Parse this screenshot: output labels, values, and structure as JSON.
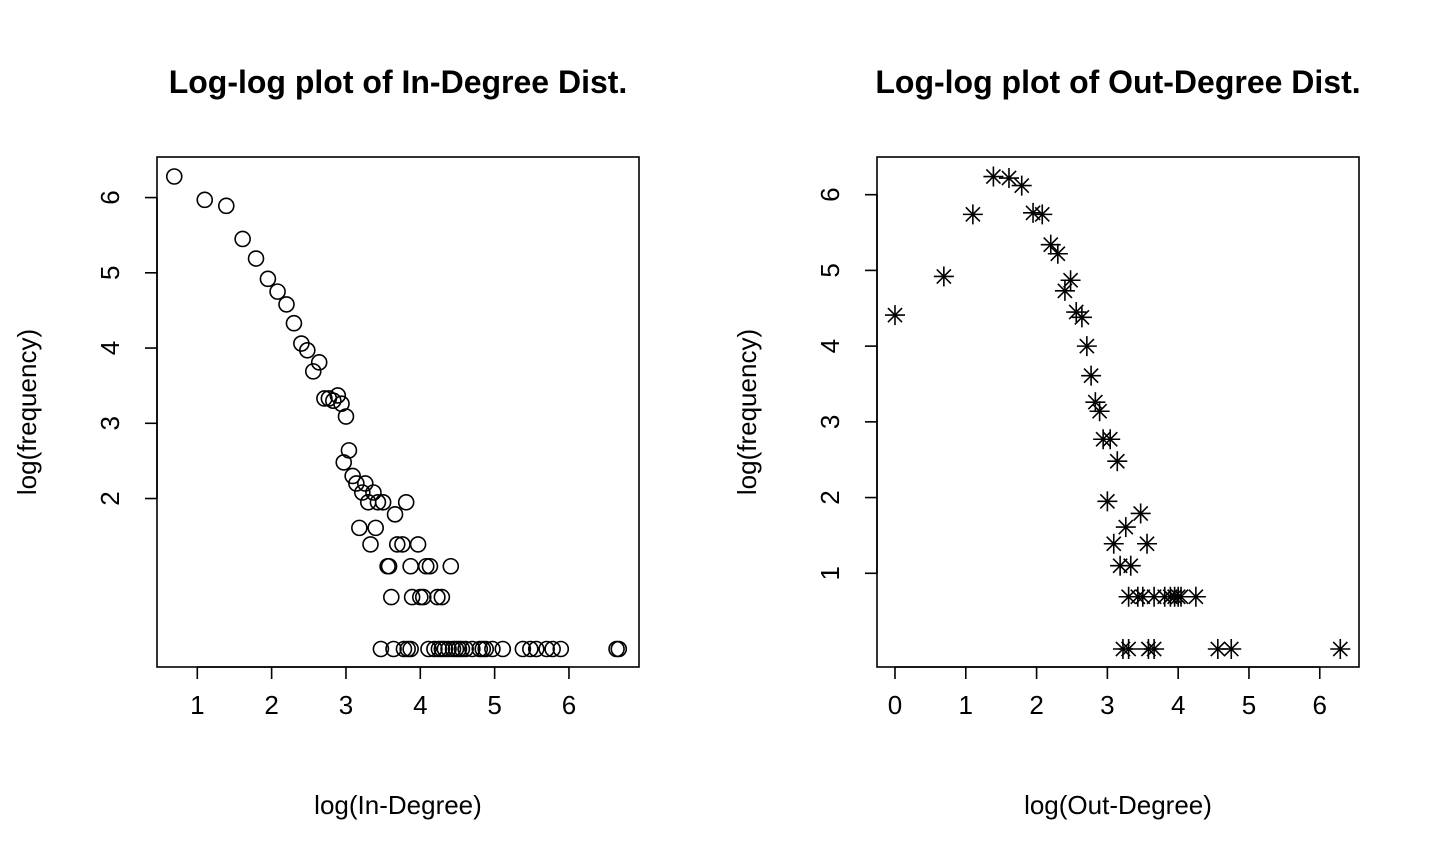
{
  "chart_data": [
    {
      "type": "scatter",
      "title": "Log-log plot of In-Degree Dist.",
      "xlabel": "log(In-Degree)",
      "ylabel": "log(frequency)",
      "xlim": [
        0.7,
        6.7
      ],
      "ylim": [
        0,
        6.3
      ],
      "xticks": [
        1,
        2,
        3,
        4,
        5,
        6
      ],
      "yticks": [
        2,
        3,
        4,
        5,
        6
      ],
      "marker": "circle",
      "points": [
        [
          0.69,
          6.28
        ],
        [
          1.1,
          5.97
        ],
        [
          1.39,
          5.89
        ],
        [
          1.61,
          5.45
        ],
        [
          1.79,
          5.19
        ],
        [
          1.95,
          4.92
        ],
        [
          2.08,
          4.75
        ],
        [
          2.2,
          4.58
        ],
        [
          2.3,
          4.33
        ],
        [
          2.4,
          4.06
        ],
        [
          2.48,
          3.97
        ],
        [
          2.56,
          3.69
        ],
        [
          2.64,
          3.81
        ],
        [
          2.71,
          3.33
        ],
        [
          2.77,
          3.33
        ],
        [
          2.83,
          3.3
        ],
        [
          2.89,
          3.37
        ],
        [
          2.94,
          3.26
        ],
        [
          3.0,
          3.09
        ],
        [
          2.97,
          2.48
        ],
        [
          3.04,
          2.64
        ],
        [
          3.09,
          2.3
        ],
        [
          3.14,
          2.2
        ],
        [
          3.18,
          1.61
        ],
        [
          3.22,
          2.08
        ],
        [
          3.26,
          2.2
        ],
        [
          3.3,
          1.95
        ],
        [
          3.33,
          1.39
        ],
        [
          3.37,
          2.08
        ],
        [
          3.4,
          1.61
        ],
        [
          3.43,
          1.95
        ],
        [
          3.5,
          1.95
        ],
        [
          3.56,
          1.1
        ],
        [
          3.58,
          1.1
        ],
        [
          3.61,
          0.69
        ],
        [
          3.66,
          1.79
        ],
        [
          3.69,
          1.39
        ],
        [
          3.76,
          1.39
        ],
        [
          3.81,
          1.95
        ],
        [
          3.87,
          1.1
        ],
        [
          3.89,
          0.69
        ],
        [
          3.97,
          1.39
        ],
        [
          4.0,
          0.69
        ],
        [
          4.04,
          0.69
        ],
        [
          4.08,
          1.1
        ],
        [
          4.13,
          1.1
        ],
        [
          4.23,
          0.69
        ],
        [
          4.29,
          0.69
        ],
        [
          4.41,
          1.1
        ],
        [
          3.47,
          0
        ],
        [
          3.64,
          0
        ],
        [
          3.78,
          0
        ],
        [
          3.83,
          0
        ],
        [
          3.87,
          0
        ],
        [
          4.11,
          0
        ],
        [
          4.19,
          0
        ],
        [
          4.25,
          0
        ],
        [
          4.29,
          0
        ],
        [
          4.33,
          0
        ],
        [
          4.38,
          0
        ],
        [
          4.44,
          0
        ],
        [
          4.48,
          0
        ],
        [
          4.52,
          0
        ],
        [
          4.56,
          0
        ],
        [
          4.61,
          0
        ],
        [
          4.7,
          0
        ],
        [
          4.8,
          0
        ],
        [
          4.84,
          0
        ],
        [
          4.88,
          0
        ],
        [
          4.97,
          0
        ],
        [
          5.11,
          0
        ],
        [
          5.38,
          0
        ],
        [
          5.48,
          0
        ],
        [
          5.56,
          0
        ],
        [
          5.7,
          0
        ],
        [
          5.78,
          0
        ],
        [
          5.89,
          0
        ],
        [
          6.64,
          0
        ],
        [
          6.67,
          0
        ]
      ]
    },
    {
      "type": "scatter",
      "title": "Log-log plot of Out-Degree Dist.",
      "xlabel": "log(Out-Degree)",
      "ylabel": "log(frequency)",
      "xlim": [
        0,
        6.3
      ],
      "ylim": [
        0,
        6.26
      ],
      "xticks": [
        0,
        1,
        2,
        3,
        4,
        5,
        6
      ],
      "yticks": [
        1,
        2,
        3,
        4,
        5,
        6
      ],
      "marker": "asterisk",
      "points": [
        [
          0.0,
          4.41
        ],
        [
          0.69,
          4.92
        ],
        [
          1.1,
          5.74
        ],
        [
          1.39,
          6.24
        ],
        [
          1.61,
          6.22
        ],
        [
          1.79,
          6.12
        ],
        [
          1.95,
          5.76
        ],
        [
          2.08,
          5.74
        ],
        [
          2.2,
          5.34
        ],
        [
          2.3,
          5.22
        ],
        [
          2.4,
          4.73
        ],
        [
          2.48,
          4.87
        ],
        [
          2.56,
          4.45
        ],
        [
          2.64,
          4.38
        ],
        [
          2.71,
          4.0
        ],
        [
          2.77,
          3.61
        ],
        [
          2.83,
          3.26
        ],
        [
          2.89,
          3.14
        ],
        [
          2.94,
          2.77
        ],
        [
          3.04,
          2.77
        ],
        [
          3.0,
          1.95
        ],
        [
          3.09,
          1.39
        ],
        [
          3.14,
          2.48
        ],
        [
          3.18,
          1.1
        ],
        [
          3.26,
          1.61
        ],
        [
          3.33,
          1.1
        ],
        [
          3.47,
          1.79
        ],
        [
          3.56,
          1.39
        ],
        [
          3.3,
          0.69
        ],
        [
          3.43,
          0.69
        ],
        [
          3.5,
          0.69
        ],
        [
          3.66,
          0.69
        ],
        [
          3.81,
          0.69
        ],
        [
          3.89,
          0.69
        ],
        [
          3.95,
          0.69
        ],
        [
          4.0,
          0.69
        ],
        [
          4.04,
          0.69
        ],
        [
          4.25,
          0.69
        ],
        [
          3.22,
          0
        ],
        [
          3.3,
          0
        ],
        [
          3.58,
          0
        ],
        [
          3.66,
          0
        ],
        [
          4.56,
          0
        ],
        [
          4.75,
          0
        ],
        [
          6.29,
          0
        ]
      ]
    }
  ]
}
